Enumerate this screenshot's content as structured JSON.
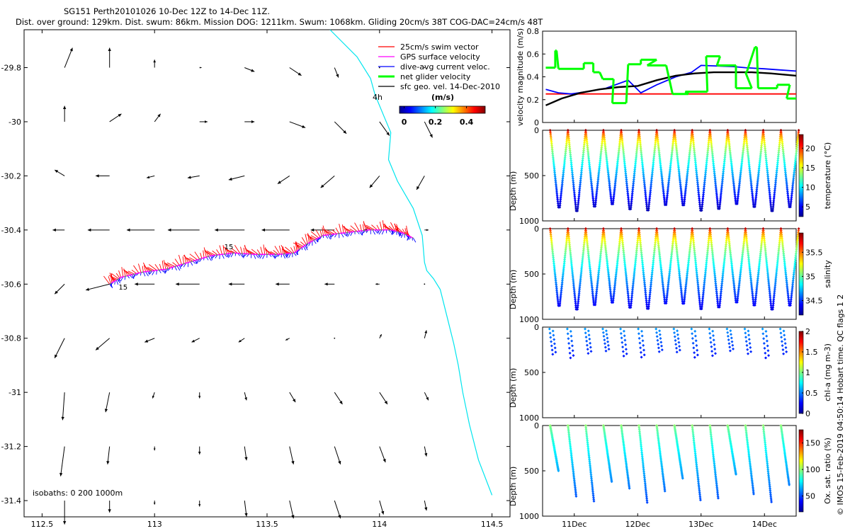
{
  "title_line1": "SG151 Perth20101026 10-Dec 12Z to 14-Dec 11Z.",
  "title_line2": "Dist. over ground: 129km. Dist. swum: 86km. Mission DOG: 1211km. Swum: 1068km. Gliding 20cm/s 38T COG-DAC=24cm/s 48T",
  "footer": "© IMOS 15-Feb-2019 04:50:14 Hobart time. QC flags 1  2",
  "colors": {
    "swim": "#ff0000",
    "gps": "#ff00ff",
    "dac": "#0000ff",
    "net": "#00ff00",
    "geo": "#000000",
    "coast": "#00e5ee"
  },
  "chart_data": [
    {
      "type": "map",
      "xlim": [
        112.42,
        114.58
      ],
      "ylim": [
        -31.46,
        -29.66
      ],
      "xticks": [
        112.5,
        113,
        113.5,
        114,
        114.5
      ],
      "xtick_labels": [
        "112.5",
        "113",
        "113.5",
        "114",
        "114.5"
      ],
      "yticks": [
        -29.8,
        -30,
        -30.2,
        -30.4,
        -30.6,
        -30.8,
        -31,
        -31.2,
        -31.4
      ],
      "ytick_labels": [
        "-29.8",
        "-30",
        "-30.2",
        "-30.4",
        "-30.6",
        "-30.8",
        "-31",
        "-31.2",
        "-31.4"
      ],
      "legend": {
        "items": [
          "25cm/s swim vector",
          "GPS surface velocity",
          "dive-avg current veloc.",
          "net glider velocity",
          "sfc geo. vel. 14-Dec-2010"
        ],
        "scale_label": "4h",
        "colorbar_title": "(m/s)",
        "colorbar_ticks": [
          "0",
          "0.2",
          "0.4"
        ],
        "colorbar_range": [
          -0.03,
          0.52
        ]
      },
      "isobaths_label": "isobaths: 0   200  1000m",
      "track_labels": [
        {
          "text": "15",
          "lon": 112.84,
          "lat": -30.61
        },
        {
          "text": "15",
          "lon": 113.31,
          "lat": -30.46
        }
      ],
      "geo_vectors": {
        "lons": [
          112.6,
          112.8,
          113.0,
          113.2,
          113.4,
          113.6,
          113.8,
          114.0,
          114.2
        ],
        "lats": [
          -29.8,
          -30.0,
          -30.2,
          -30.4,
          -30.6,
          -30.8,
          -31.0,
          -31.2,
          -31.4
        ],
        "u": [
          [
            0.04,
            0.0,
            0.0,
            0.01,
            0.05,
            0.06,
            0.02,
            0.0,
            0.0
          ],
          [
            0.0,
            0.06,
            0.03,
            0.04,
            0.05,
            0.08,
            0.06,
            0.05,
            0.04
          ],
          [
            -0.05,
            -0.07,
            -0.04,
            -0.06,
            -0.08,
            -0.06,
            -0.07,
            -0.05,
            -0.04
          ],
          [
            -0.06,
            -0.11,
            -0.14,
            -0.16,
            -0.15,
            -0.14,
            -0.12,
            -0.08,
            0.02
          ],
          [
            -0.05,
            -0.12,
            -0.1,
            -0.12,
            -0.08,
            -0.07,
            -0.05,
            -0.02,
            0.0
          ],
          [
            -0.05,
            -0.07,
            -0.05,
            -0.04,
            -0.03,
            -0.02,
            0.0,
            0.01,
            0.01
          ],
          [
            -0.01,
            -0.02,
            -0.01,
            0.0,
            0.01,
            0.03,
            0.04,
            0.04,
            0.02
          ],
          [
            -0.02,
            -0.01,
            0.0,
            0.0,
            0.01,
            0.02,
            0.03,
            0.03,
            0.01
          ],
          [
            0.0,
            0.0,
            0.0,
            0.0,
            0.01,
            0.02,
            0.03,
            0.02,
            0.01
          ]
        ],
        "v": [
          [
            0.1,
            0.1,
            0.04,
            0.0,
            -0.02,
            -0.04,
            -0.05,
            0.0,
            0.0
          ],
          [
            0.08,
            0.04,
            0.04,
            0.0,
            0.0,
            -0.03,
            -0.06,
            -0.07,
            -0.08
          ],
          [
            0.03,
            0.0,
            -0.01,
            -0.01,
            -0.02,
            -0.04,
            -0.06,
            -0.06,
            -0.07
          ],
          [
            0.0,
            0.0,
            0.0,
            0.0,
            0.0,
            0.0,
            0.0,
            0.0,
            0.0
          ],
          [
            -0.05,
            -0.03,
            0.0,
            0.0,
            0.0,
            0.0,
            0.0,
            0.0,
            0.0
          ],
          [
            -0.1,
            -0.06,
            -0.02,
            -0.02,
            -0.02,
            -0.01,
            0.0,
            0.02,
            0.04
          ],
          [
            -0.14,
            -0.1,
            -0.03,
            -0.03,
            -0.04,
            -0.05,
            -0.06,
            -0.06,
            -0.04
          ],
          [
            -0.15,
            -0.09,
            -0.02,
            -0.04,
            -0.07,
            -0.09,
            -0.09,
            -0.08,
            -0.05
          ],
          [
            -0.12,
            -0.06,
            -0.02,
            -0.03,
            -0.08,
            -0.09,
            -0.09,
            -0.07,
            -0.05
          ]
        ]
      },
      "glider_track": {
        "lon": [
          112.8,
          112.85,
          112.95,
          113.05,
          113.15,
          113.25,
          113.35,
          113.45,
          113.55,
          113.62,
          113.68,
          113.75,
          113.85,
          113.95,
          114.05,
          114.1,
          114.15
        ],
        "lat": [
          -30.6,
          -30.575,
          -30.555,
          -30.545,
          -30.52,
          -30.495,
          -30.485,
          -30.49,
          -30.49,
          -30.485,
          -30.45,
          -30.42,
          -30.41,
          -30.4,
          -30.4,
          -30.41,
          -30.43
        ]
      },
      "coastline": {
        "lon": [
          113.78,
          113.9,
          113.96,
          113.98,
          114.02,
          114.05,
          114.04,
          114.08,
          114.15,
          114.19,
          114.2,
          114.21,
          114.24,
          114.27,
          114.3,
          114.33,
          114.35,
          114.37,
          114.4,
          114.44,
          114.5
        ],
        "lat": [
          -29.66,
          -29.76,
          -29.84,
          -29.9,
          -29.98,
          -30.04,
          -30.14,
          -30.22,
          -30.32,
          -30.42,
          -30.52,
          -30.55,
          -30.58,
          -30.62,
          -30.72,
          -30.82,
          -30.9,
          -31.0,
          -31.12,
          -31.25,
          -31.38
        ]
      }
    },
    {
      "type": "line",
      "x_label_days": [
        "11Dec",
        "12Dec",
        "13Dec",
        "14Dec"
      ],
      "xlim": [
        10.5,
        14.5
      ],
      "ylim": [
        0,
        0.8
      ],
      "yticks": [
        0,
        0.2,
        0.4,
        0.6,
        0.8
      ],
      "ytick_labels": [
        "0",
        "0.2",
        "0.4",
        "0.6",
        "0.8"
      ],
      "ylabel": "velocity magnitude (m/s)",
      "series": [
        {
          "name": "swim",
          "color": "#ff0000",
          "t": [
            10.55,
            14.5
          ],
          "v": [
            0.25,
            0.25
          ]
        },
        {
          "name": "dive-avg current",
          "color": "#0000ff",
          "t": [
            10.55,
            10.75,
            10.95,
            11.2,
            11.5,
            11.85,
            12.05,
            12.3,
            12.6,
            12.85,
            13.0,
            13.5,
            13.7,
            14.0,
            14.25,
            14.5
          ],
          "v": [
            0.29,
            0.26,
            0.25,
            0.27,
            0.3,
            0.37,
            0.26,
            0.33,
            0.4,
            0.44,
            0.5,
            0.49,
            0.48,
            0.47,
            0.46,
            0.45
          ]
        },
        {
          "name": "net glider",
          "color": "#000000",
          "t": [
            10.55,
            10.8,
            11.1,
            11.4,
            11.7,
            12.0,
            12.3,
            12.6,
            12.9,
            13.2,
            13.5,
            13.8,
            14.1,
            14.3,
            14.5
          ],
          "v": [
            0.15,
            0.21,
            0.26,
            0.29,
            0.31,
            0.32,
            0.37,
            0.41,
            0.43,
            0.44,
            0.44,
            0.44,
            0.43,
            0.42,
            0.41
          ]
        },
        {
          "name": "GPS surface",
          "color": "#00ff00",
          "segments": [
            [
              10.55,
              0.48,
              10.7,
              0.48
            ],
            [
              10.7,
              0.63,
              10.72,
              0.63
            ],
            [
              10.75,
              0.47,
              11.15,
              0.47
            ],
            [
              11.15,
              0.52,
              11.3,
              0.52
            ],
            [
              11.3,
              0.44,
              11.4,
              0.44
            ],
            [
              11.45,
              0.38,
              11.62,
              0.38
            ],
            [
              11.6,
              0.17,
              11.82,
              0.17
            ],
            [
              11.85,
              0.51,
              12.05,
              0.51
            ],
            [
              12.05,
              0.55,
              12.3,
              0.55
            ],
            [
              12.15,
              0.5,
              12.45,
              0.5
            ],
            [
              12.55,
              0.25,
              12.8,
              0.25
            ],
            [
              12.75,
              0.27,
              13.1,
              0.27
            ],
            [
              13.08,
              0.58,
              13.3,
              0.58
            ],
            [
              13.25,
              0.5,
              13.55,
              0.5
            ],
            [
              13.55,
              0.3,
              13.8,
              0.3
            ],
            [
              13.7,
              0.44,
              13.72,
              0.44
            ],
            [
              13.85,
              0.66,
              13.88,
              0.66
            ],
            [
              13.9,
              0.3,
              14.2,
              0.3
            ],
            [
              14.2,
              0.33,
              14.4,
              0.33
            ],
            [
              14.35,
              0.21,
              14.5,
              0.21
            ]
          ]
        }
      ]
    },
    {
      "type": "scatter",
      "variable": "temperature",
      "clabel": "temperature (°C)",
      "cticks": [
        5,
        10,
        15,
        20
      ],
      "cticks_labels": [
        "5",
        "10",
        "15",
        "20"
      ],
      "clim": [
        2.5,
        23.5
      ],
      "ylim": [
        0,
        1000
      ],
      "yticks": [
        0,
        500,
        1000
      ],
      "ytick_labels": [
        "0",
        "500",
        "1000"
      ],
      "ylabel": "Depth (m)",
      "profile_times": [
        10.62,
        10.9,
        11.18,
        11.46,
        11.74,
        12.02,
        12.3,
        12.58,
        12.86,
        13.14,
        13.42,
        13.7,
        13.98,
        14.26
      ],
      "max_depth": 850,
      "surface_value": 23,
      "deep_value": 4
    },
    {
      "type": "scatter",
      "variable": "salinity",
      "clabel": "salinity",
      "cticks": [
        34.5,
        35,
        35.5
      ],
      "cticks_labels": [
        "34.5",
        "35",
        "35.5"
      ],
      "clim": [
        34.2,
        35.9
      ],
      "ylim": [
        0,
        1000
      ],
      "yticks": [
        0,
        500,
        1000
      ],
      "ytick_labels": [
        "0",
        "500",
        "1000"
      ],
      "ylabel": "Depth (m)",
      "max_depth": 850,
      "surface_value": 35.8,
      "deep_value": 34.4
    },
    {
      "type": "scatter",
      "variable": "chl-a",
      "clabel": "chl-a (mg m-3)",
      "cticks": [
        0,
        0.5,
        1,
        1.5,
        2
      ],
      "cticks_labels": [
        "0",
        "0.5",
        "1",
        "1.5",
        "2"
      ],
      "clim": [
        0,
        2
      ],
      "ylim": [
        0,
        1000
      ],
      "yticks": [
        0,
        500,
        1000
      ],
      "ytick_labels": [
        "0",
        "500",
        "1000"
      ],
      "ylabel": "Depth (m)",
      "max_depth": 300,
      "surface_value": 0.6,
      "deep_value": 0.0
    },
    {
      "type": "scatter",
      "variable": "Ox. sat. ratio",
      "clabel": "Ox. sat. ratio (%)",
      "cticks": [
        50,
        100,
        150
      ],
      "cticks_labels": [
        "50",
        "100",
        "150"
      ],
      "clim": [
        20,
        175
      ],
      "ylim": [
        0,
        1000
      ],
      "yticks": [
        0,
        500,
        1000
      ],
      "ytick_labels": [
        "0",
        "500",
        "1000"
      ],
      "ylabel": "Depth (m)",
      "max_depth": 850,
      "surface_value": 100,
      "deep_value": 50
    }
  ]
}
